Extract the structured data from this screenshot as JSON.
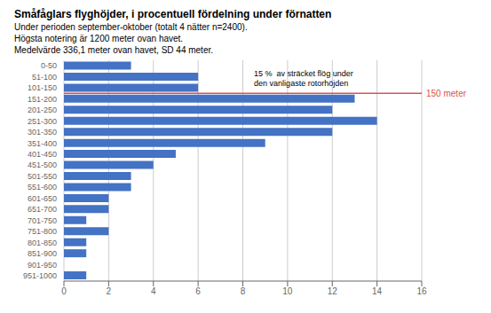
{
  "chart_data": {
    "type": "bar",
    "orientation": "horizontal",
    "title": "Småfåglars flyghöjder, i procentuell fördelning under förnatten",
    "subtitle": [
      "Under perioden september-oktober (totalt 4 nätter n=2400).",
      "Högsta notering är 1200 meter ovan havet.",
      "Medelvärde 336,1 meter ovan havet, SD 44 meter."
    ],
    "categories": [
      "0-50",
      "51-100",
      "101-150",
      "151-200",
      "201-250",
      "251-300",
      "301-350",
      "351-400",
      "401-450",
      "451-500",
      "501-550",
      "551-600",
      "601-650",
      "651-700",
      "701-750",
      "751-800",
      "801-850",
      "851-900",
      "901-950",
      "951-1000"
    ],
    "values": [
      3,
      6,
      6,
      13,
      12,
      14,
      12,
      9,
      5,
      4,
      3,
      3,
      2,
      2,
      1,
      2,
      1,
      1,
      0,
      1
    ],
    "color": "#4472C4",
    "xlim": [
      0,
      16
    ],
    "xticks": [
      0,
      2,
      4,
      6,
      8,
      10,
      12,
      14,
      16
    ],
    "grid": true,
    "reference_line": {
      "label": "150 meter",
      "color": "#E05050",
      "after": "101-150"
    },
    "annotation": "15 %  av sträcket flög under\nden vanligaste rotorhöjden"
  }
}
